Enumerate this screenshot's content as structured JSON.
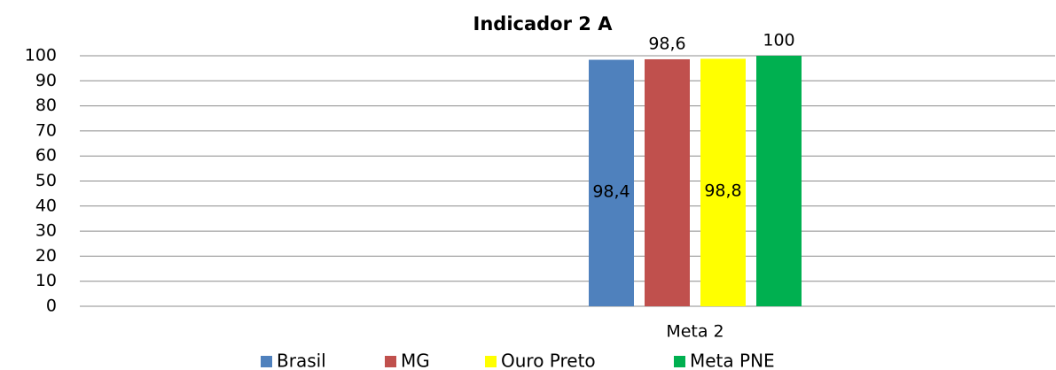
{
  "chart_data": {
    "type": "bar",
    "title": "Indicador 2 A",
    "categories": [
      "Meta 2"
    ],
    "series": [
      {
        "name": "Brasil",
        "color": "#4f81bd",
        "values": [
          98.4
        ],
        "value_labels": [
          "98,4"
        ]
      },
      {
        "name": "MG",
        "color": "#c0504d",
        "values": [
          98.6
        ],
        "value_labels": [
          "98,6"
        ]
      },
      {
        "name": "Ouro Preto",
        "color": "#ffff00",
        "values": [
          98.8
        ],
        "value_labels": [
          "98,8"
        ]
      },
      {
        "name": "Meta PNE",
        "color": "#00b050",
        "values": [
          100
        ],
        "value_labels": [
          "100"
        ]
      }
    ],
    "ylim": [
      0,
      100
    ],
    "yticks": [
      0,
      10,
      20,
      30,
      40,
      50,
      60,
      70,
      80,
      90,
      100
    ],
    "grid": true,
    "legend": "bottom"
  }
}
